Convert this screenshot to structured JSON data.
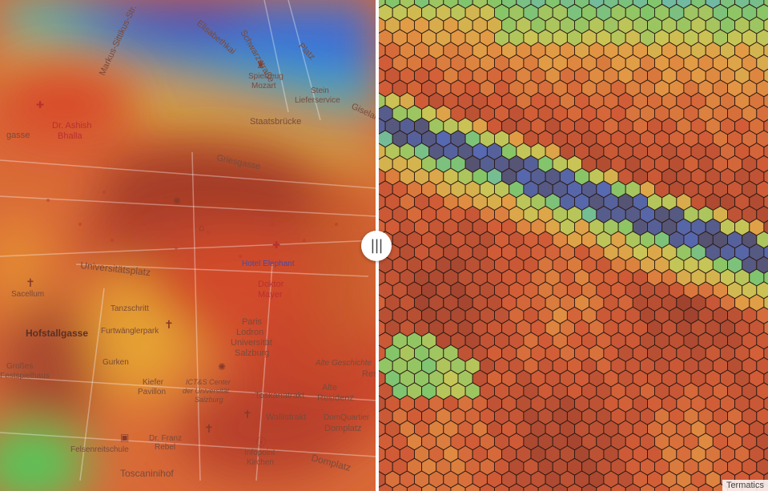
{
  "map": {
    "labels": {
      "schwarzstrasse": "Schwarzstraße",
      "markus_sittikus": "Markus-Sittikus-Str.",
      "elisabethkai": "Elisabethkai",
      "platz": "Platz",
      "spielzeug_mozart": "Spielzeug",
      "mozart": "Mozart",
      "stein": "Stein",
      "lieferservice": "Lieferservice",
      "giselakai": "Giselakai",
      "staatsbruecke": "Staatsbrücke",
      "dr_ashish": "Dr. Ashish",
      "bhalla": "Bhalla",
      "gasse": "gasse",
      "griesgasse": "Griesgasse",
      "universitaetsplatz": "Universitätsplatz",
      "hotel_elephant": "Hotel Elephant",
      "doktor": "Doktor",
      "mayer": "Mayer",
      "sacellum": "Sacellum",
      "tanzschritt": "Tanzschritt",
      "hofstallgasse": "Hofstallgasse",
      "furtwaenglerpark": "Furtwänglerpark",
      "paris": "Paris",
      "lodron": "Lodron",
      "universitaet": "Universität",
      "salzburg": "Salzburg",
      "alte_geschichte": "Alte Geschichte",
      "res": "Res",
      "gurken": "Gurken",
      "kiefer": "Kiefer",
      "pavillon": "Pavillon",
      "ictands": "ICT&S Center",
      "der_universitaet": "der Universität",
      "salzburg2": "Salzburg",
      "toskanatrakt": "Toskanatrakt",
      "alte": "Alte",
      "residenz": "Residenz",
      "grosses": "Großes",
      "festspielhaus": "Festspielhaus",
      "wallistrakt": "Wallistrakt",
      "domquartier": "DomQuartier",
      "domplatz": "Domplatz",
      "felsenreitschule": "Felsenreitschule",
      "dr_franz": "Dr. Franz",
      "rebel": "Rebel",
      "infopoint": "Infopoint",
      "kirchen": "Kirchen",
      "domplatz2": "Domplatz",
      "toscaninihof": "Toscaninihof"
    }
  },
  "divider": {
    "handle_glyph": "|||",
    "handle_icon": "slider-handle-icon"
  },
  "attribution": "Termatics",
  "colors": {
    "low": "#3a5fcd",
    "mid": "#3cd07a",
    "high": "#d9532a",
    "max": "#7a2f20"
  }
}
